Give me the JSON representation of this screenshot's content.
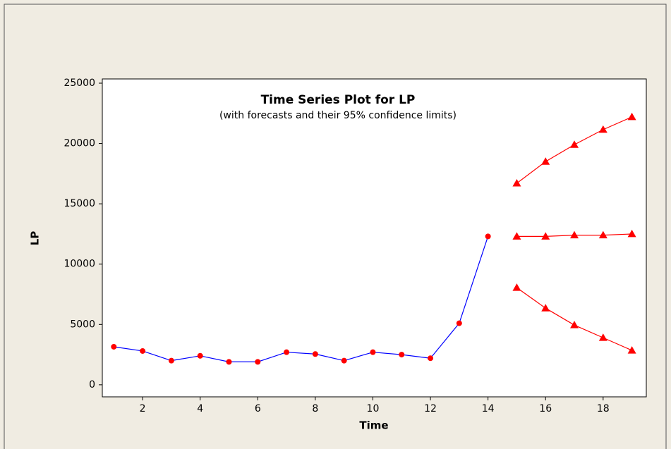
{
  "chart_data": {
    "type": "line",
    "title": "Time Series Plot for LP",
    "subtitle": "(with forecasts and their 95% confidence limits)",
    "x_label": "Time",
    "y_label": "LP",
    "x": [
      1,
      2,
      3,
      4,
      5,
      6,
      7,
      8,
      9,
      10,
      11,
      12,
      13,
      14,
      15,
      16,
      17,
      18,
      19
    ],
    "series": [
      {
        "color": "#0000ff",
        "marker_color": "#ff0000",
        "marker": "circle",
        "values": [
          3150,
          2800,
          2000,
          2400,
          1900,
          1900,
          2700,
          2550,
          2000,
          2700,
          2500,
          2200,
          5100,
          12300,
          null,
          null,
          null,
          null,
          null
        ]
      },
      {
        "color": "#ff0000",
        "marker_color": "#ff0000",
        "marker": "triangle",
        "values": [
          null,
          null,
          null,
          null,
          null,
          null,
          null,
          null,
          null,
          null,
          null,
          null,
          null,
          null,
          12300,
          12300,
          12400,
          12400,
          12500
        ]
      },
      {
        "color": "#ff0000",
        "marker_color": "#ff0000",
        "marker": "triangle",
        "values": [
          null,
          null,
          null,
          null,
          null,
          null,
          null,
          null,
          null,
          null,
          null,
          null,
          null,
          null,
          16700,
          18500,
          19900,
          21150,
          22200
        ]
      },
      {
        "color": "#ff0000",
        "marker_color": "#ff0000",
        "marker": "triangle",
        "values": [
          null,
          null,
          null,
          null,
          null,
          null,
          null,
          null,
          null,
          null,
          null,
          null,
          null,
          null,
          8050,
          6350,
          4950,
          3900,
          2850
        ]
      }
    ],
    "xlim": [
      0.6,
      19.5
    ],
    "ylim": [
      -1000,
      25350
    ],
    "xticks": [
      2,
      4,
      6,
      8,
      10,
      12,
      14,
      16,
      18
    ],
    "yticks": [
      0,
      5000,
      10000,
      15000,
      20000,
      25000
    ],
    "grid": false
  }
}
